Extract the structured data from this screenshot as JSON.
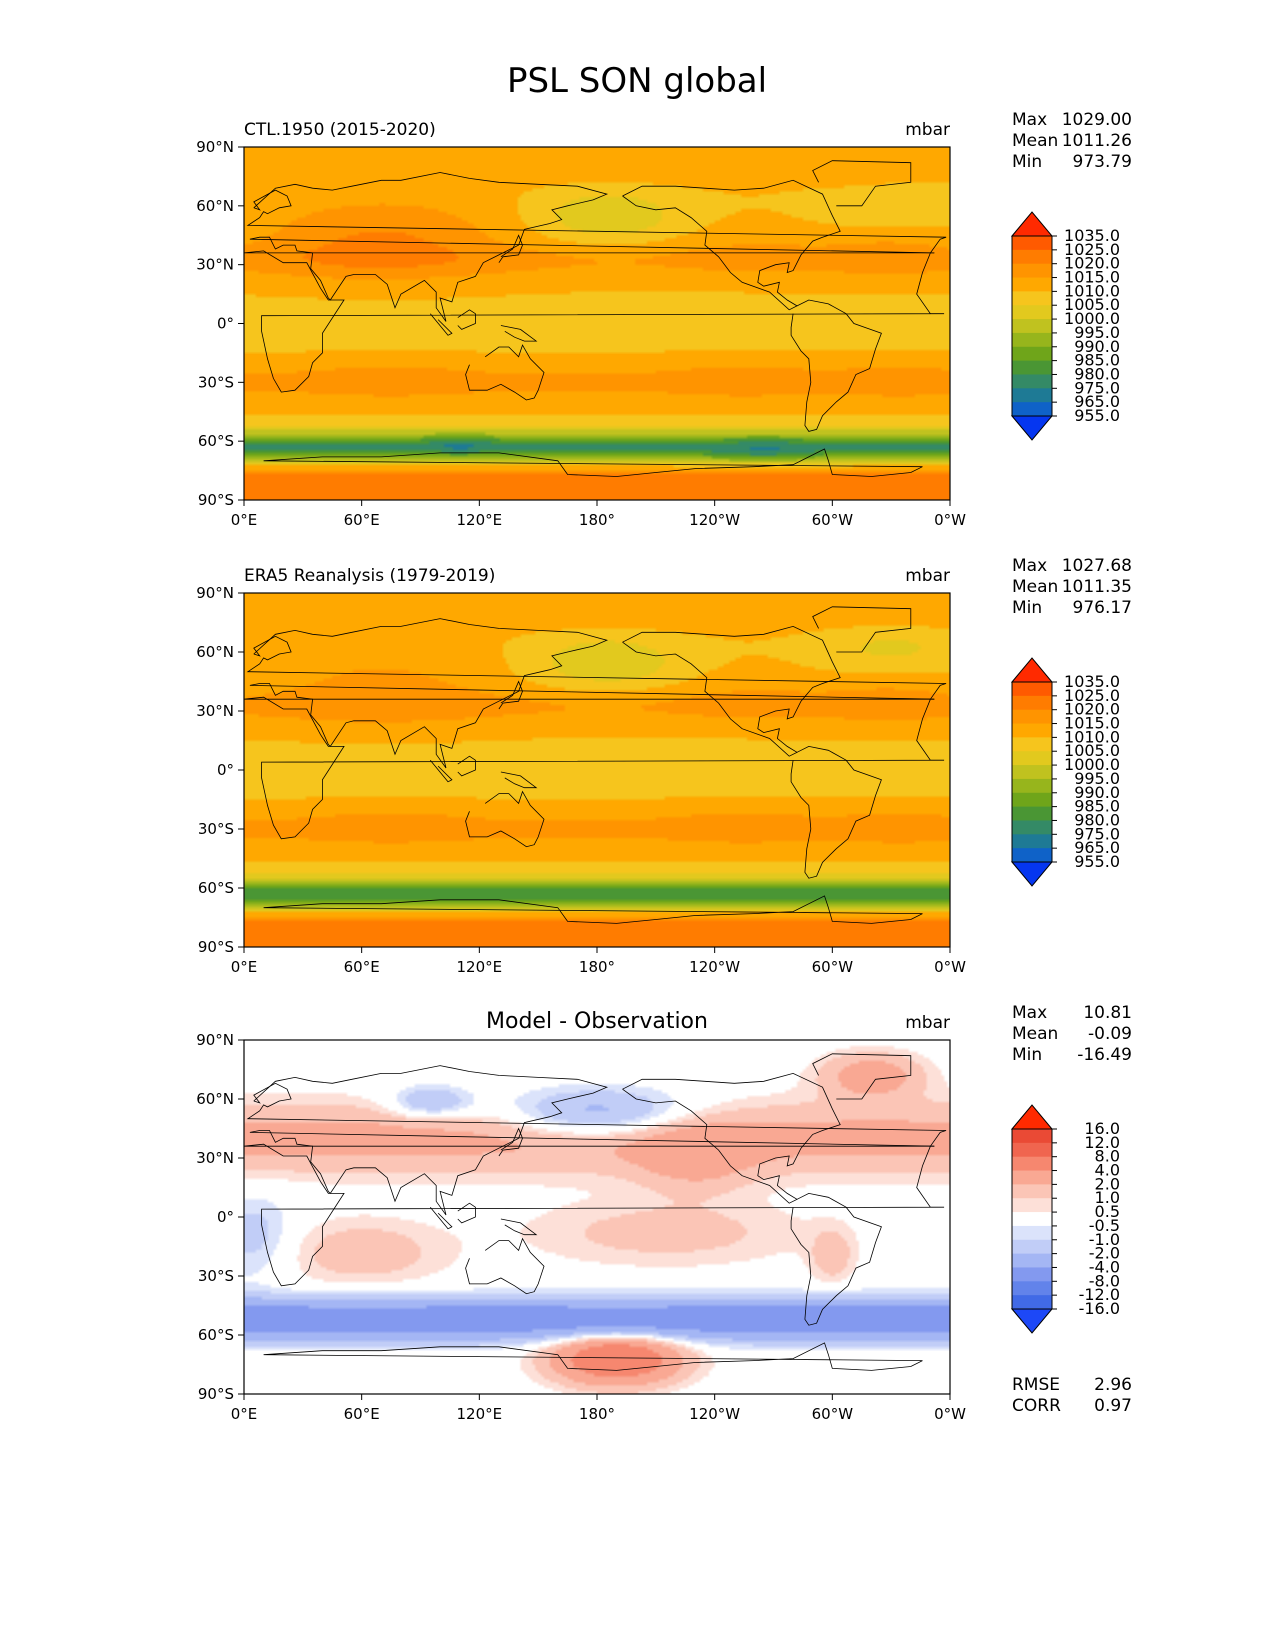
{
  "figure": {
    "title": "PSL SON global"
  },
  "chart_data": [
    {
      "type": "heatmap",
      "title": "CTL.1950 (2015-2020)",
      "units": "mbar",
      "xlabel": "",
      "ylabel": "",
      "xticks": [
        "0°E",
        "60°E",
        "120°E",
        "180°",
        "120°W",
        "60°W",
        "0°W"
      ],
      "yticks": [
        "90°N",
        "60°N",
        "30°N",
        "0°",
        "30°S",
        "60°S",
        "90°S"
      ],
      "stats": [
        {
          "label": "Max",
          "value": "1029.00"
        },
        {
          "label": "Mean",
          "value": "1011.26"
        },
        {
          "label": "Min",
          "value": "973.79"
        }
      ],
      "colorbar": {
        "levels": [
          "1035.0",
          "1025.0",
          "1020.0",
          "1015.0",
          "1010.0",
          "1005.0",
          "1000.0",
          "995.0",
          "990.0",
          "985.0",
          "980.0",
          "975.0",
          "965.0",
          "955.0"
        ],
        "colors": [
          "#ff2a00",
          "#ff5a00",
          "#ff7c00",
          "#ff9400",
          "#ffa800",
          "#f6c51d",
          "#e2c91e",
          "#c0c21f",
          "#97b51c",
          "#6fa51a",
          "#4a9634",
          "#348a66",
          "#1e7a95",
          "#0f62c8",
          "#0536f0"
        ],
        "extend": "both"
      },
      "field": "ctl"
    },
    {
      "type": "heatmap",
      "title": "ERA5 Reanalysis (1979-2019)",
      "units": "mbar",
      "xlabel": "",
      "ylabel": "",
      "xticks": [
        "0°E",
        "60°E",
        "120°E",
        "180°",
        "120°W",
        "60°W",
        "0°W"
      ],
      "yticks": [
        "90°N",
        "60°N",
        "30°N",
        "0°",
        "30°S",
        "60°S",
        "90°S"
      ],
      "stats": [
        {
          "label": "Max",
          "value": "1027.68"
        },
        {
          "label": "Mean",
          "value": "1011.35"
        },
        {
          "label": "Min",
          "value": "976.17"
        }
      ],
      "colorbar": {
        "levels": [
          "1035.0",
          "1025.0",
          "1020.0",
          "1015.0",
          "1010.0",
          "1005.0",
          "1000.0",
          "995.0",
          "990.0",
          "985.0",
          "980.0",
          "975.0",
          "965.0",
          "955.0"
        ],
        "colors": [
          "#ff2a00",
          "#ff5a00",
          "#ff7c00",
          "#ff9400",
          "#ffa800",
          "#f6c51d",
          "#e2c91e",
          "#c0c21f",
          "#97b51c",
          "#6fa51a",
          "#4a9634",
          "#348a66",
          "#1e7a95",
          "#0f62c8",
          "#0536f0"
        ],
        "extend": "both"
      },
      "field": "obs"
    },
    {
      "type": "heatmap",
      "title": "Model - Observation",
      "units": "mbar",
      "xlabel": "",
      "ylabel": "",
      "xticks": [
        "0°E",
        "60°E",
        "120°E",
        "180°",
        "120°W",
        "60°W",
        "0°W"
      ],
      "yticks": [
        "90°N",
        "60°N",
        "30°N",
        "0°",
        "30°S",
        "60°S",
        "90°S"
      ],
      "stats": [
        {
          "label": "Max",
          "value": "10.81"
        },
        {
          "label": "Mean",
          "value": "-0.09"
        },
        {
          "label": "Min",
          "value": "-16.49"
        }
      ],
      "extra_stats": [
        {
          "label": "RMSE",
          "value": "2.96"
        },
        {
          "label": "CORR",
          "value": "0.97"
        }
      ],
      "colorbar": {
        "levels": [
          "16.0",
          "12.0",
          "8.0",
          "4.0",
          "2.0",
          "1.0",
          "0.5",
          "-0.5",
          "-1.0",
          "-2.0",
          "-4.0",
          "-8.0",
          "-12.0",
          "-16.0"
        ],
        "colors": [
          "#ff2a00",
          "#ea4a35",
          "#f0654f",
          "#f6876f",
          "#f9a893",
          "#fbc5b6",
          "#fde0d8",
          "#ffffff",
          "#dbe3fb",
          "#c1cdf7",
          "#a4b6f4",
          "#8399ef",
          "#6283ea",
          "#416ae6",
          "#1d48f7"
        ],
        "extend": "both"
      },
      "field": "diff"
    }
  ]
}
